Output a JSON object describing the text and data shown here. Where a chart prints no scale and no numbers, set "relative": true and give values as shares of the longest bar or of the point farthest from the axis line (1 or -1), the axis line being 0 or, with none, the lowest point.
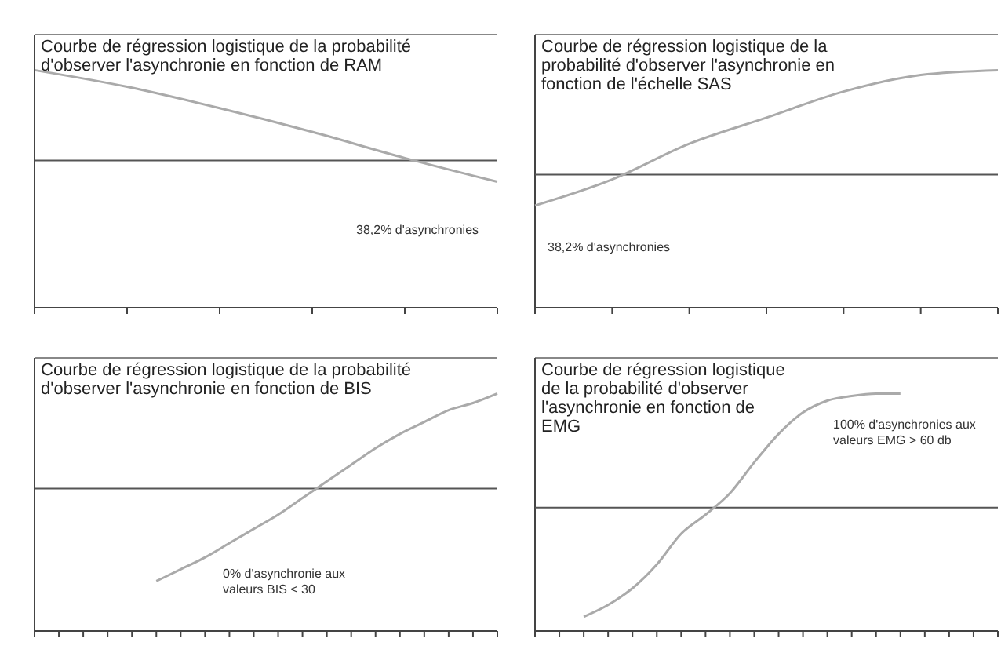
{
  "chart_data": [
    {
      "type": "line",
      "title": "Courbe de régression logistique de la probabilité d'observer l'asynchronie en fonction de RAM",
      "relative": true,
      "categories": [
        null,
        null,
        null,
        null,
        null,
        null
      ],
      "series": [
        {
          "color": "#aaaaaa",
          "values": [
            1,
            0.93,
            0.84,
            0.74,
            0.63,
            0.53
          ]
        }
      ],
      "ref_lines": [
        {
          "axis": "y",
          "value": 0.62,
          "color": "#555555"
        }
      ],
      "annotations": [
        "38,2% d'asynchronies"
      ]
    },
    {
      "type": "line",
      "title": "Courbe de régression logistique de la probabilité d'observer l'asynchronie en fonction de l'échelle SAS",
      "relative": true,
      "categories": [
        null,
        null,
        null,
        null,
        null,
        null,
        null
      ],
      "series": [
        {
          "color": "#aaaaaa",
          "values": [
            0.43,
            0.54,
            0.69,
            0.8,
            0.91,
            0.98,
            1
          ]
        }
      ],
      "ref_lines": [
        {
          "axis": "y",
          "value": 0.56,
          "color": "#555555"
        }
      ],
      "annotations": [
        "38,2% d'asynchronies"
      ]
    },
    {
      "type": "line",
      "title": "Courbe de régression logistique de la probabilité d'observer l'asynchronie en fonction de BIS",
      "relative": true,
      "categories": [
        null,
        null,
        null,
        null,
        null,
        null,
        null,
        null,
        null,
        null,
        null,
        null,
        null,
        null,
        null,
        null,
        null,
        null,
        null,
        null
      ],
      "series": [
        {
          "color": "#aaaaaa",
          "values": [
            null,
            null,
            null,
            null,
            null,
            0.21,
            0.26,
            0.31,
            0.37,
            0.43,
            0.49,
            0.56,
            0.63,
            0.7,
            0.77,
            0.83,
            0.88,
            0.93,
            0.96,
            1
          ]
        }
      ],
      "ref_lines": [
        {
          "axis": "y",
          "value": 0.6,
          "color": "#555555"
        }
      ],
      "annotations": [
        "0% d'asynchronie aux valeurs BIS < 30"
      ]
    },
    {
      "type": "line",
      "title": "Courbe de régression logistique de la probabilité d'observer l'asynchronie en fonction de EMG",
      "relative": true,
      "categories": [
        null,
        null,
        null,
        null,
        null,
        null,
        null,
        null,
        null,
        null,
        null,
        null,
        null,
        null,
        null,
        null,
        null,
        null,
        null,
        null
      ],
      "series": [
        {
          "color": "#aaaaaa",
          "values": [
            null,
            null,
            0.06,
            0.11,
            0.18,
            0.28,
            0.41,
            0.49,
            0.58,
            0.71,
            0.83,
            0.92,
            0.97,
            0.99,
            1,
            1,
            null,
            null,
            null,
            null
          ]
        }
      ],
      "ref_lines": [
        {
          "axis": "y",
          "value": 0.52,
          "color": "#555555"
        }
      ],
      "annotations": [
        "100% d'asynchronies aux valeurs EMG > 60 db"
      ]
    }
  ]
}
